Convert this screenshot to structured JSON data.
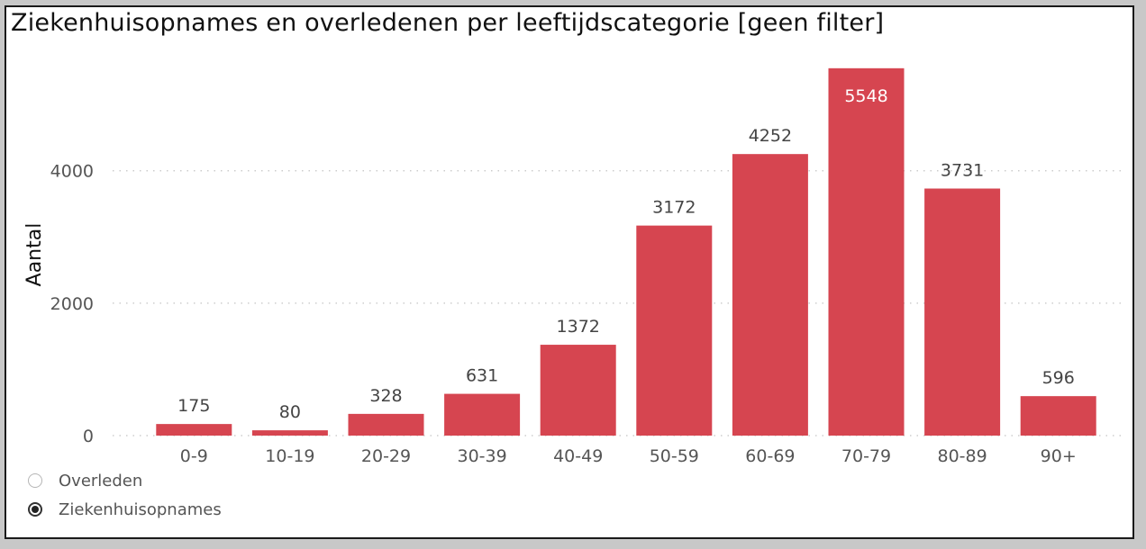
{
  "chart_data": {
    "type": "bar",
    "title": "Ziekenhuisopnames en overledenen per leeftijdscategorie [geen filter]",
    "ylabel": "Aantal",
    "xlabel": "",
    "categories": [
      "0-9",
      "10-19",
      "20-29",
      "30-39",
      "40-49",
      "50-59",
      "60-69",
      "70-79",
      "80-89",
      "90+"
    ],
    "series": [
      {
        "name": "Ziekenhuisopnames",
        "values": [
          175,
          80,
          328,
          631,
          1372,
          3172,
          4252,
          5548,
          3731,
          596
        ]
      }
    ],
    "ylim": [
      0,
      5600
    ],
    "yticks": [
      0,
      2000,
      4000
    ],
    "grid": true,
    "bar_color": "#d64550",
    "data_labels": true
  },
  "legend": {
    "items": [
      {
        "label": "Overleden",
        "selected": false
      },
      {
        "label": "Ziekenhuisopnames",
        "selected": true
      }
    ]
  }
}
